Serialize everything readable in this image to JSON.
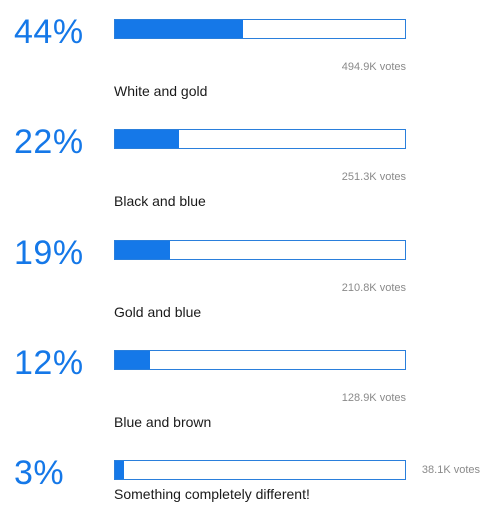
{
  "colors": {
    "accent": "#1578e8",
    "bar_border": "#2a7fdc",
    "text": "#1a1a1a",
    "muted": "#8a8a8a"
  },
  "poll": {
    "options": [
      {
        "percent": "44%",
        "fraction": 0.44,
        "votes": "494.9K votes",
        "label": "White and gold"
      },
      {
        "percent": "22%",
        "fraction": 0.22,
        "votes": "251.3K votes",
        "label": "Black and blue"
      },
      {
        "percent": "19%",
        "fraction": 0.19,
        "votes": "210.8K votes",
        "label": "Gold and blue"
      },
      {
        "percent": "12%",
        "fraction": 0.12,
        "votes": "128.9K votes",
        "label": "Blue and brown"
      },
      {
        "percent": "3%",
        "fraction": 0.03,
        "votes": "38.1K votes",
        "label": "Something completely different!"
      }
    ]
  }
}
